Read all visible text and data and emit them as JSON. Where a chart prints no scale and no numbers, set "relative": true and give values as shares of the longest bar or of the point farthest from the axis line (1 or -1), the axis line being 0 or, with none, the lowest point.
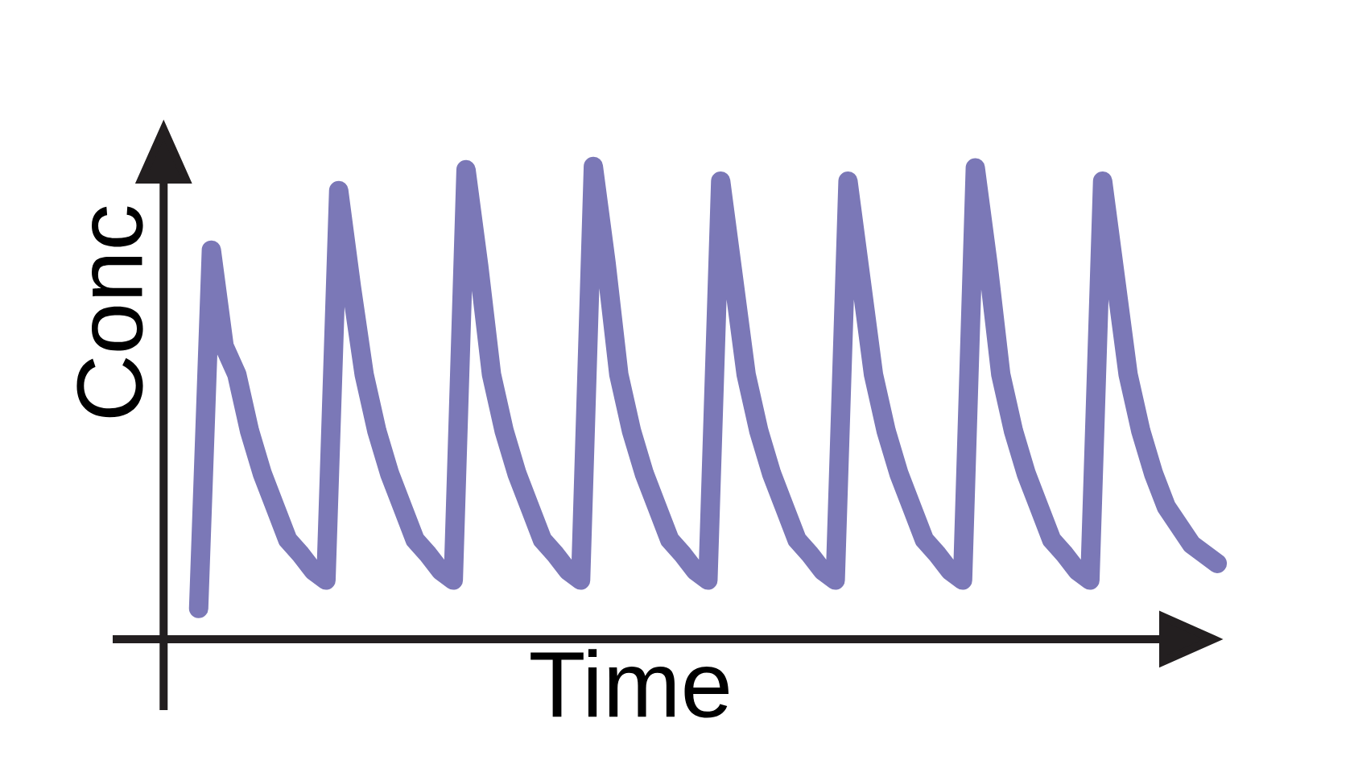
{
  "chart_data": {
    "type": "line",
    "xlabel": "Time",
    "ylabel": "Conc",
    "relative": true,
    "tick_labels": false,
    "marker": "none",
    "line_style": "solid",
    "categories": [
      null,
      null,
      null,
      null,
      null,
      null,
      null,
      null,
      null,
      null,
      null,
      null,
      null,
      null,
      null,
      null,
      null,
      null,
      null,
      null,
      null,
      null,
      null,
      null,
      null,
      null,
      null,
      null,
      null,
      null,
      null,
      null,
      null,
      null,
      null,
      null,
      null,
      null,
      null,
      null,
      null,
      null,
      null,
      null,
      null,
      null,
      null,
      null,
      null,
      null,
      null,
      null,
      null,
      null,
      null,
      null,
      null,
      null,
      null,
      null,
      null,
      null,
      null,
      null,
      null,
      null,
      null,
      null,
      null,
      null,
      null,
      null,
      null,
      null,
      null,
      null,
      null,
      null,
      null,
      null,
      null
    ],
    "series": [
      {
        "color": "#7b78b7",
        "values": [
          0.065,
          0.823,
          0.62,
          0.56,
          0.44,
          0.35,
          0.28,
          0.21,
          0.18,
          0.145,
          0.125,
          0.949,
          0.745,
          0.56,
          0.44,
          0.35,
          0.28,
          0.21,
          0.18,
          0.145,
          0.125,
          0.993,
          0.789,
          0.56,
          0.44,
          0.35,
          0.28,
          0.21,
          0.18,
          0.145,
          0.125,
          1.0,
          0.796,
          0.56,
          0.44,
          0.35,
          0.28,
          0.21,
          0.18,
          0.145,
          0.125,
          0.969,
          0.765,
          0.56,
          0.44,
          0.35,
          0.28,
          0.21,
          0.18,
          0.145,
          0.125,
          0.969,
          0.765,
          0.56,
          0.44,
          0.35,
          0.28,
          0.21,
          0.18,
          0.145,
          0.125,
          0.997,
          0.793,
          0.56,
          0.44,
          0.35,
          0.28,
          0.21,
          0.18,
          0.145,
          0.125,
          0.969,
          0.765,
          0.56,
          0.44,
          0.35,
          0.28,
          0.24,
          0.2,
          0.18,
          0.16
        ]
      }
    ]
  }
}
